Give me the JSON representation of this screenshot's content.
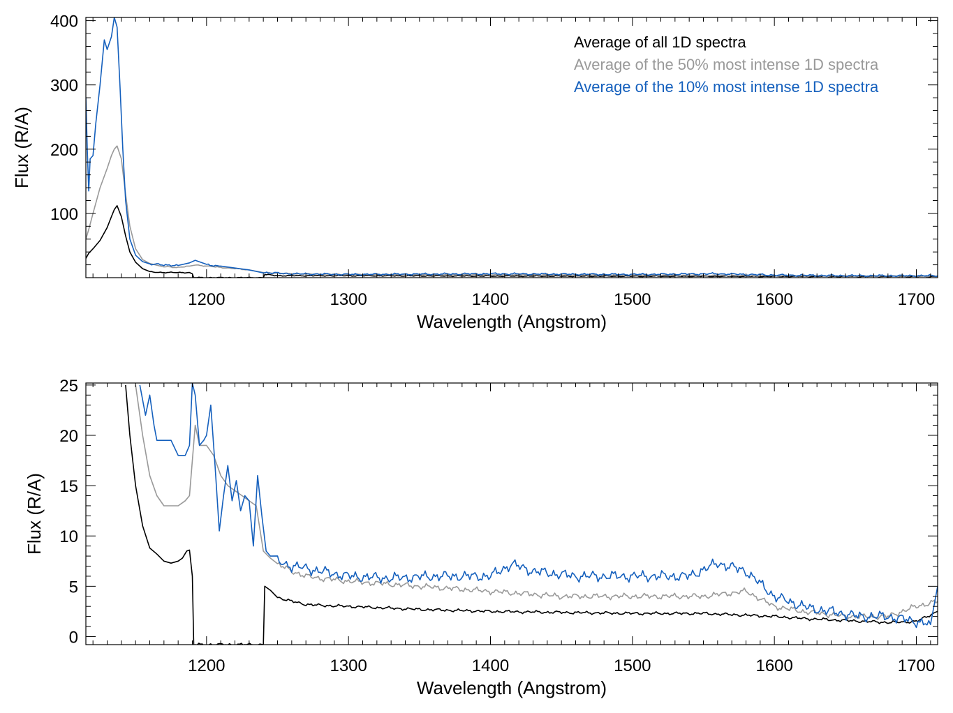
{
  "colors": {
    "all": "#000000",
    "top50": "#999999",
    "top10": "#1560bd"
  },
  "chart_data": [
    {
      "type": "line",
      "xlabel": "Wavelength (Angstrom)",
      "ylabel": "Flux (R/A)",
      "xlim": [
        1115,
        1715
      ],
      "ylim": [
        0,
        405
      ],
      "xticks": [
        1200,
        1300,
        1400,
        1500,
        1600,
        1700
      ],
      "yticks": [
        100,
        200,
        300,
        400
      ],
      "grid": false,
      "legend": {
        "placement": "top-right",
        "entries": [
          "Average of all 1D spectra",
          "Average of the 50% most intense 1D spectra",
          "Average of the 10% most intense 1D spectra"
        ]
      },
      "series": [
        {
          "name": "Average of all 1D spectra",
          "color_key": "all",
          "x": [
            1115,
            1117,
            1120,
            1125,
            1130,
            1133,
            1135,
            1137,
            1140,
            1143,
            1146,
            1150,
            1155,
            1160,
            1170,
            1180,
            1188,
            1190,
            1191,
            1240,
            1241,
            1250,
            1300,
            1400,
            1500,
            1600,
            1650,
            1700,
            1715
          ],
          "y": [
            30,
            38,
            45,
            58,
            78,
            95,
            106,
            112,
            95,
            65,
            40,
            24,
            14,
            9,
            8,
            8,
            8,
            6,
            0,
            0,
            5,
            3,
            3,
            2.5,
            2.3,
            2,
            2,
            2,
            2
          ]
        },
        {
          "name": "Average of the 50% most intense 1D spectra",
          "color_key": "top50",
          "x": [
            1115,
            1117,
            1120,
            1125,
            1130,
            1133,
            1135,
            1137,
            1140,
            1143,
            1146,
            1150,
            1155,
            1160,
            1170,
            1180,
            1188,
            1192,
            1200,
            1210,
            1220,
            1230,
            1240,
            1260,
            1300,
            1400,
            1500,
            1600,
            1650,
            1700,
            1715
          ],
          "y": [
            60,
            75,
            100,
            140,
            170,
            190,
            200,
            205,
            185,
            130,
            80,
            45,
            28,
            22,
            17,
            16,
            18,
            20,
            18,
            16,
            14,
            12,
            8,
            6,
            5,
            4.5,
            4,
            3,
            2.5,
            2.5,
            2.5
          ]
        },
        {
          "name": "Average of the 10% most intense 1D spectra",
          "color_key": "top10",
          "x": [
            1115,
            1116,
            1117,
            1118,
            1120,
            1122,
            1125,
            1128,
            1130,
            1133,
            1135,
            1137,
            1139,
            1141,
            1143,
            1146,
            1150,
            1155,
            1160,
            1170,
            1180,
            1188,
            1192,
            1200,
            1210,
            1220,
            1230,
            1240,
            1260,
            1300,
            1400,
            1500,
            1560,
            1600,
            1650,
            1700,
            1715
          ],
          "y": [
            280,
            200,
            135,
            185,
            190,
            240,
            300,
            370,
            355,
            375,
            405,
            390,
            300,
            200,
            120,
            60,
            35,
            25,
            21,
            20,
            19,
            23,
            27,
            20,
            18,
            15,
            12,
            8,
            6,
            5,
            6,
            5,
            6,
            4,
            3,
            3,
            3
          ]
        }
      ]
    },
    {
      "type": "line",
      "xlabel": "Wavelength (Angstrom)",
      "ylabel": "Flux (R/A)",
      "xlim": [
        1115,
        1715
      ],
      "ylim": [
        -0.8,
        25.2
      ],
      "xticks": [
        1200,
        1300,
        1400,
        1500,
        1600,
        1700
      ],
      "yticks": [
        0,
        5,
        10,
        15,
        20,
        25
      ],
      "grid": false,
      "series": [
        {
          "name": "Average of all 1D spectra",
          "color_key": "all",
          "x": [
            1143,
            1146,
            1150,
            1155,
            1160,
            1165,
            1170,
            1175,
            1180,
            1183,
            1186,
            1188,
            1190,
            1191,
            1240,
            1241,
            1245,
            1250,
            1260,
            1270,
            1280,
            1300,
            1350,
            1400,
            1450,
            1500,
            1550,
            1600,
            1620,
            1650,
            1680,
            1700,
            1715
          ],
          "y": [
            25,
            20,
            15,
            11,
            8.8,
            8.2,
            7.5,
            7.3,
            7.5,
            7.8,
            8.5,
            8.6,
            6,
            -0.8,
            -0.8,
            5,
            4.6,
            3.9,
            3.5,
            3.2,
            3.1,
            3,
            2.7,
            2.5,
            2.4,
            2.3,
            2.3,
            2,
            1.8,
            1.6,
            1.4,
            1.5,
            2.5
          ]
        },
        {
          "name": "Average of the 50% most intense 1D spectra",
          "color_key": "top50",
          "x": [
            1150,
            1155,
            1160,
            1165,
            1170,
            1175,
            1180,
            1185,
            1188,
            1192,
            1195,
            1200,
            1205,
            1210,
            1215,
            1220,
            1225,
            1230,
            1235,
            1240,
            1245,
            1250,
            1260,
            1270,
            1280,
            1300,
            1350,
            1400,
            1450,
            1500,
            1550,
            1580,
            1600,
            1620,
            1650,
            1680,
            1700,
            1715
          ],
          "y": [
            25,
            20,
            16,
            14,
            13,
            13,
            13,
            13.5,
            14,
            21,
            19,
            19,
            18,
            16,
            15,
            14.5,
            14,
            13.5,
            13,
            8.5,
            7.8,
            7.2,
            6.5,
            6,
            5.8,
            5.5,
            5,
            4.5,
            4,
            4,
            4,
            4.5,
            3,
            2.5,
            2,
            2,
            3,
            3.5
          ]
        },
        {
          "name": "Average of the 10% most intense 1D spectra",
          "color_key": "top10",
          "x": [
            1153,
            1157,
            1160,
            1163,
            1165,
            1170,
            1175,
            1180,
            1185,
            1188,
            1190,
            1192,
            1195,
            1198,
            1200,
            1203,
            1206,
            1209,
            1212,
            1215,
            1218,
            1221,
            1224,
            1227,
            1230,
            1233,
            1236,
            1239,
            1242,
            1245,
            1250,
            1260,
            1270,
            1280,
            1300,
            1330,
            1360,
            1400,
            1415,
            1430,
            1460,
            1500,
            1540,
            1560,
            1580,
            1600,
            1610,
            1625,
            1640,
            1660,
            1680,
            1700,
            1710,
            1715
          ],
          "y": [
            25,
            22,
            24,
            21,
            19.5,
            19.5,
            19.5,
            18,
            18,
            19,
            25.2,
            24,
            19,
            19.5,
            20,
            23,
            17,
            10.5,
            14,
            17,
            13.5,
            15.5,
            12.5,
            14,
            13.5,
            9,
            16,
            12,
            8.5,
            8,
            7.5,
            7,
            6.8,
            6.5,
            6,
            5.8,
            6,
            6,
            7.2,
            6.5,
            6,
            6,
            6,
            7.3,
            6.5,
            4,
            3.5,
            2.8,
            2.5,
            2,
            2,
            1.5,
            1.2,
            5
          ]
        }
      ]
    }
  ]
}
